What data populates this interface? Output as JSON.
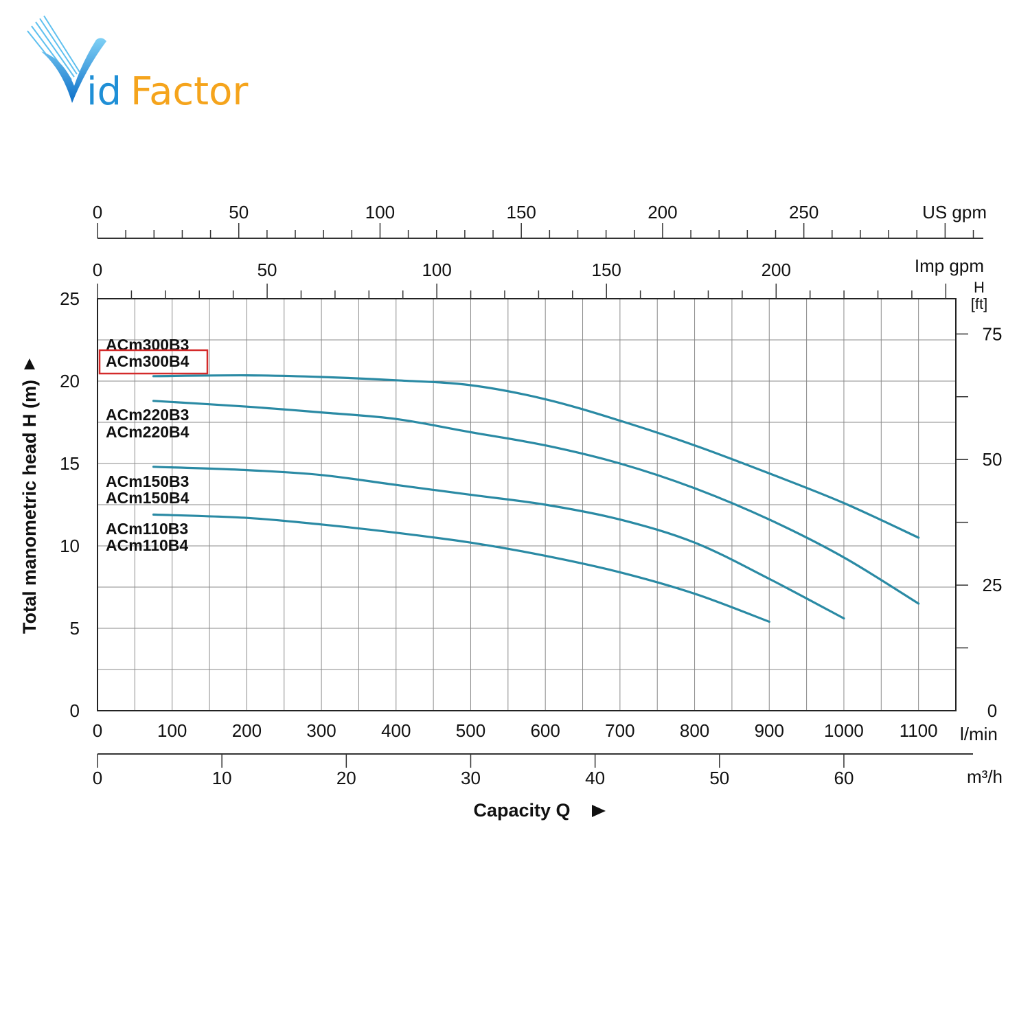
{
  "brand": {
    "logo_text_id": "id",
    "logo_text_factor": "Factor",
    "colors": {
      "blue": "#1f8fd6",
      "orange": "#f5a41c",
      "dark_blue": "#0d5fb0"
    }
  },
  "chart_data": {
    "type": "line",
    "title": "",
    "xlabel": "Capacity Q",
    "ylabel": "Total manometric head H (m)",
    "x_unit": "l/min",
    "xlim": [
      0,
      1150
    ],
    "ylim": [
      0,
      25
    ],
    "x_ticks": [
      0,
      100,
      200,
      300,
      400,
      500,
      600,
      700,
      800,
      900,
      1000,
      1100
    ],
    "y_ticks": [
      0,
      5,
      10,
      15,
      20,
      25
    ],
    "grid": true,
    "secondary_axes": {
      "us_gpm": {
        "label": "US gpm",
        "ticks": [
          0,
          50,
          100,
          150,
          200,
          250
        ]
      },
      "imp_gpm": {
        "label": "Imp gpm",
        "ticks": [
          0,
          50,
          100,
          150,
          200
        ]
      },
      "m3h": {
        "label": "m³/h",
        "ticks": [
          0,
          10,
          20,
          30,
          40,
          50,
          60
        ]
      },
      "h_ft": {
        "label_line1": "H",
        "label_line2": "[ft]",
        "ticks": [
          0,
          25,
          50,
          75
        ]
      }
    },
    "series_color": "#2a8aa4",
    "highlight_color": "#d42a2a",
    "series": [
      {
        "name": "ACm300B3 / ACm300B4",
        "labels": [
          "ACm300B3",
          "ACm300B4"
        ],
        "highlighted_label": "ACm300B4",
        "points": [
          [
            75,
            20.3
          ],
          [
            200,
            20.35
          ],
          [
            300,
            20.25
          ],
          [
            400,
            20.05
          ],
          [
            500,
            19.75
          ],
          [
            600,
            18.9
          ],
          [
            700,
            17.6
          ],
          [
            800,
            16.1
          ],
          [
            900,
            14.4
          ],
          [
            1000,
            12.6
          ],
          [
            1100,
            10.5
          ]
        ]
      },
      {
        "name": "ACm220B3 / ACm220B4",
        "labels": [
          "ACm220B3",
          "ACm220B4"
        ],
        "points": [
          [
            75,
            18.8
          ],
          [
            200,
            18.45
          ],
          [
            300,
            18.1
          ],
          [
            400,
            17.7
          ],
          [
            500,
            16.9
          ],
          [
            600,
            16.1
          ],
          [
            700,
            15.0
          ],
          [
            800,
            13.5
          ],
          [
            900,
            11.6
          ],
          [
            1000,
            9.3
          ],
          [
            1100,
            6.5
          ]
        ]
      },
      {
        "name": "ACm150B3 / ACm150B4",
        "labels": [
          "ACm150B3",
          "ACm150B4"
        ],
        "points": [
          [
            75,
            14.8
          ],
          [
            200,
            14.6
          ],
          [
            300,
            14.3
          ],
          [
            400,
            13.7
          ],
          [
            500,
            13.1
          ],
          [
            600,
            12.5
          ],
          [
            700,
            11.6
          ],
          [
            800,
            10.2
          ],
          [
            900,
            8.0
          ],
          [
            1000,
            5.6
          ]
        ]
      },
      {
        "name": "ACm110B3 / ACm110B4",
        "labels": [
          "ACm110B3",
          "ACm110B4"
        ],
        "points": [
          [
            75,
            11.9
          ],
          [
            200,
            11.7
          ],
          [
            300,
            11.3
          ],
          [
            400,
            10.8
          ],
          [
            500,
            10.2
          ],
          [
            600,
            9.4
          ],
          [
            700,
            8.4
          ],
          [
            800,
            7.1
          ],
          [
            900,
            5.4
          ]
        ]
      }
    ]
  }
}
